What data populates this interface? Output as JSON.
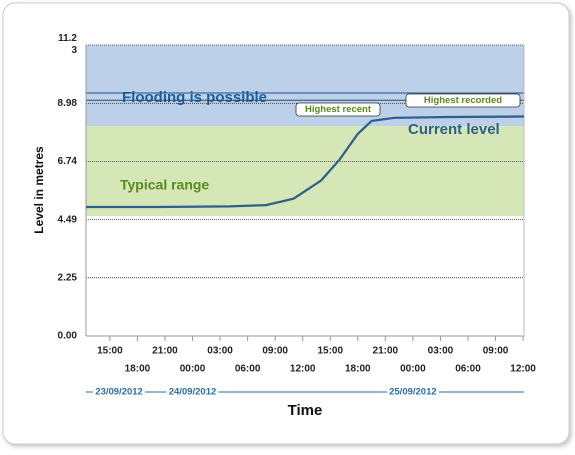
{
  "chart_data": {
    "type": "line",
    "ylabel": "Level in metres",
    "xlabel": "Time",
    "ylim": [
      0,
      11.23
    ],
    "yticks": [
      {
        "value": 0,
        "label": "0.00"
      },
      2.25,
      4.49,
      6.74,
      8.98,
      {
        "value": 11.23,
        "label": "11.23"
      }
    ],
    "xlim": [
      12.4,
      60.1
    ],
    "xticks": [
      {
        "value": 15,
        "label": "15:00"
      },
      {
        "value": 18,
        "label": "18:00"
      },
      {
        "value": 21,
        "label": "21:00"
      },
      {
        "value": 24,
        "label": "00:00"
      },
      {
        "value": 27,
        "label": "03:00"
      },
      {
        "value": 30,
        "label": "06:00"
      },
      {
        "value": 33,
        "label": "09:00"
      },
      {
        "value": 36,
        "label": "12:00"
      },
      {
        "value": 39,
        "label": "15:00"
      },
      {
        "value": 42,
        "label": "18:00"
      },
      {
        "value": 45,
        "label": "21:00"
      },
      {
        "value": 48,
        "label": "00:00"
      },
      {
        "value": 51,
        "label": "03:00"
      },
      {
        "value": 54,
        "label": "06:00"
      },
      {
        "value": 57,
        "label": "09:00"
      },
      {
        "value": 60,
        "label": "12:00"
      }
    ],
    "date_ticks": [
      {
        "value": 16,
        "label": "23/09/2012"
      },
      {
        "value": 24,
        "label": "24/09/2012"
      },
      {
        "value": 48,
        "label": "25/09/2012"
      }
    ],
    "grid": true,
    "bands": [
      {
        "name": "Flooding is possible",
        "from": 8.1,
        "to": 11.23,
        "color": "#bcd0ea"
      },
      {
        "name": "Typical range",
        "from": 4.63,
        "to": 8.1,
        "color": "#d5e7b6"
      }
    ],
    "reference_lines": [
      {
        "name": "Highest recent",
        "value": 9.1
      },
      {
        "name": "Highest recorded",
        "value": 9.38
      }
    ],
    "series": [
      {
        "name": "Current level",
        "color": "#2e5f8c",
        "x": [
          12.4,
          20,
          28,
          32,
          35,
          38,
          40,
          42,
          43.5,
          46,
          52,
          60.1
        ],
        "values": [
          4.98,
          4.98,
          5.0,
          5.05,
          5.3,
          6.0,
          6.8,
          7.8,
          8.3,
          8.42,
          8.45,
          8.47
        ]
      }
    ]
  }
}
